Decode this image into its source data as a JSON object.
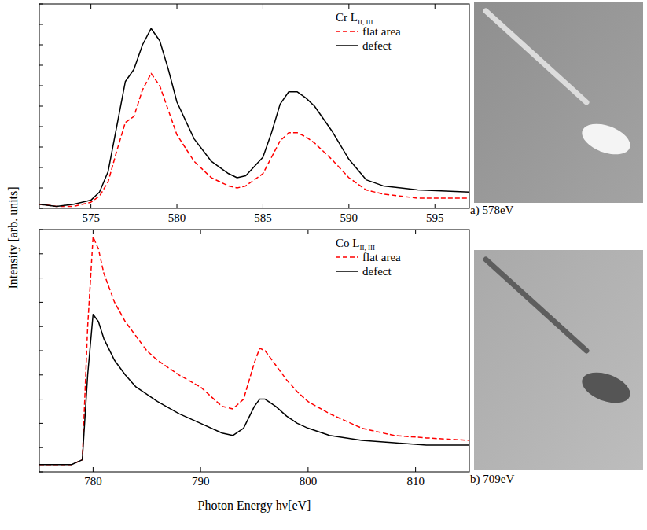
{
  "chart_data": [
    {
      "type": "line",
      "title": "Cr L",
      "title_subscript": "II, III",
      "annotation": "a) 578eV",
      "y_label": "Intensity  [arb. units]",
      "x": [
        572,
        573,
        574,
        575,
        575.5,
        576,
        576.5,
        577,
        577.5,
        578,
        578.5,
        579,
        579.5,
        580,
        581,
        582,
        583,
        583.5,
        584,
        585,
        585.5,
        586,
        586.5,
        587,
        587.5,
        588,
        589,
        590,
        591,
        592,
        594,
        597
      ],
      "series": [
        {
          "name": "flat area",
          "color": "#ff0000",
          "line_style": "dashed",
          "values": [
            2,
            1,
            1,
            3,
            6,
            13,
            28,
            42,
            45,
            58,
            66,
            60,
            48,
            36,
            23,
            15,
            11,
            10,
            11,
            17,
            25,
            33,
            37,
            37,
            35,
            32,
            24,
            15,
            9,
            7,
            5,
            5
          ]
        },
        {
          "name": "defect",
          "color": "#000000",
          "line_style": "solid",
          "values": [
            2,
            1,
            2,
            4,
            8,
            18,
            40,
            62,
            68,
            80,
            88,
            82,
            68,
            52,
            34,
            23,
            17,
            15,
            16,
            25,
            37,
            51,
            57,
            57,
            54,
            50,
            38,
            24,
            14,
            11,
            9,
            8
          ]
        }
      ],
      "xlim": [
        572,
        597
      ],
      "xticks": [
        575,
        580,
        585,
        590,
        595
      ],
      "ylim": [
        0,
        100
      ],
      "yticks": [
        0,
        10,
        20,
        30,
        40,
        50,
        60,
        70,
        80,
        90,
        100
      ],
      "tick_labels": "x",
      "legend": "upper right",
      "grid": false
    },
    {
      "type": "line",
      "title": "Co L",
      "title_subscript": "II, III",
      "annotation": "b) 709eV",
      "x_label": "Photon Energy  hν[eV]",
      "x": [
        775,
        776,
        777,
        778,
        779,
        779.5,
        780,
        780.5,
        781,
        782,
        783,
        784,
        785,
        786,
        788,
        790,
        792,
        793,
        794,
        795,
        795.5,
        796,
        797,
        798,
        799,
        800,
        802,
        805,
        808,
        811,
        815
      ],
      "series": [
        {
          "name": "flat area",
          "color": "#ff0000",
          "line_style": "dashed",
          "values": [
            3,
            3,
            3,
            3,
            5,
            60,
            97,
            92,
            82,
            70,
            62,
            56,
            50,
            46,
            40,
            35,
            27,
            26,
            30,
            45,
            51,
            50,
            44,
            38,
            33,
            29,
            24,
            18,
            15,
            14,
            13
          ]
        },
        {
          "name": "defect",
          "color": "#000000",
          "line_style": "solid",
          "values": [
            3,
            3,
            3,
            3,
            5,
            40,
            65,
            62,
            55,
            46,
            40,
            35,
            32,
            29,
            24,
            20,
            16,
            15,
            18,
            27,
            30,
            30,
            27,
            23,
            20,
            18,
            15,
            13,
            12,
            11,
            11
          ]
        }
      ],
      "xlim": [
        775,
        815
      ],
      "xticks": [
        780,
        790,
        800,
        810
      ],
      "ylim": [
        0,
        100
      ],
      "yticks": [
        0,
        10,
        20,
        30,
        40,
        50,
        60,
        70,
        80,
        90,
        100
      ],
      "tick_labels": "x",
      "legend": "upper right",
      "grid": false
    }
  ]
}
